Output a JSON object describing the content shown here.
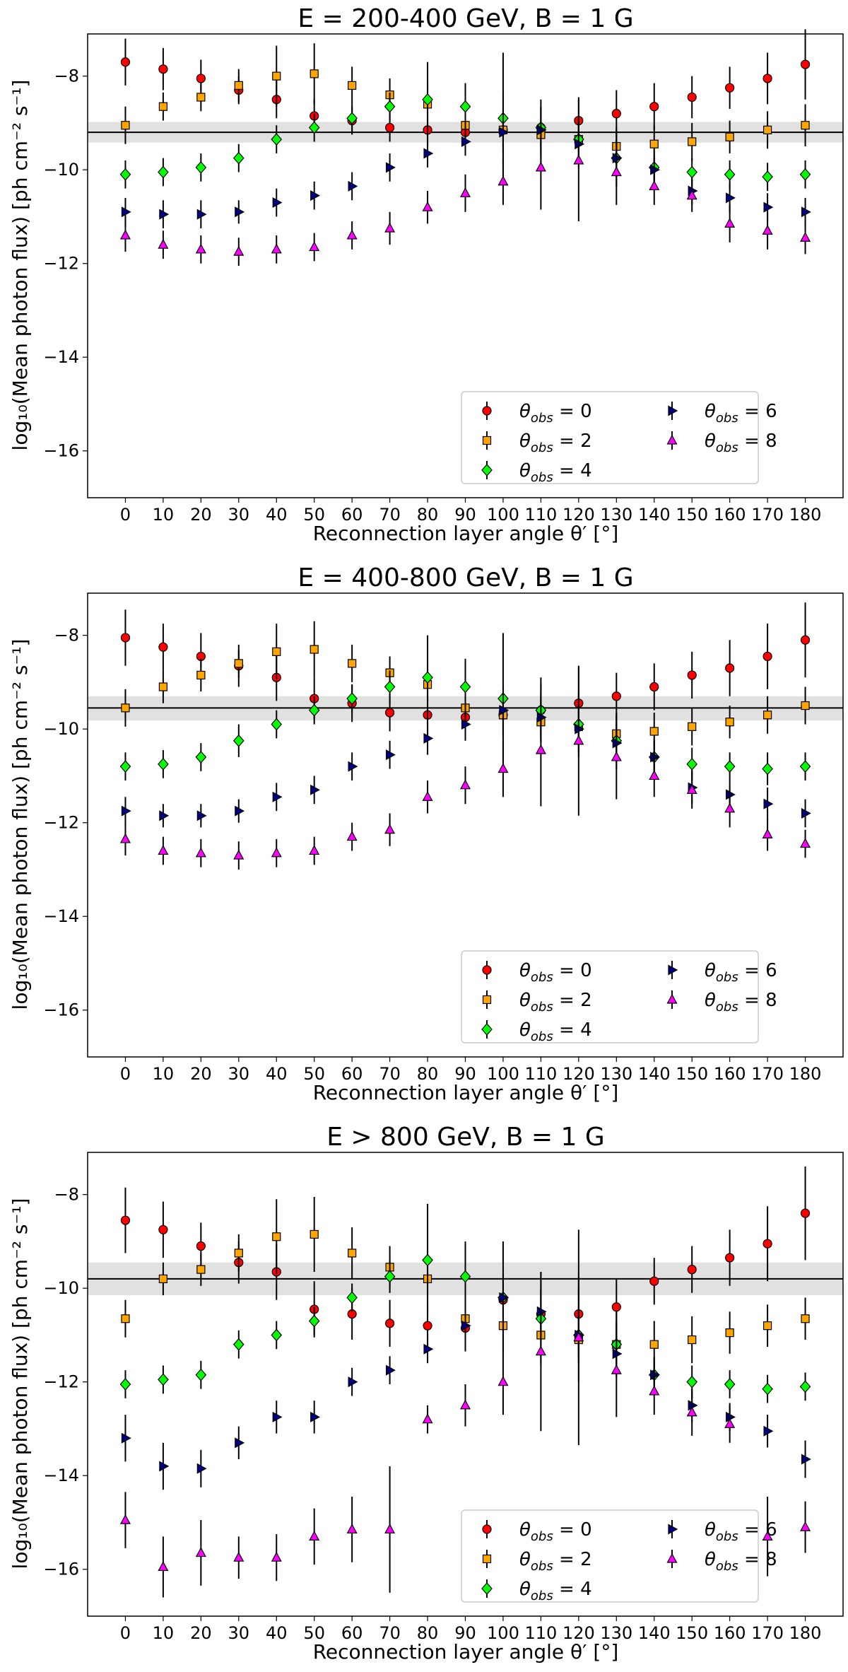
{
  "chart_data": [
    {
      "type": "scatter",
      "title": "E = 200-400 GeV, B = 1 G",
      "xlabel": "Reconnection layer angle θ′ [°]",
      "ylabel": "log₁₀(Mean photon flux) [ph cm⁻² s⁻¹]",
      "x": [
        0,
        10,
        20,
        30,
        40,
        50,
        60,
        70,
        80,
        90,
        100,
        110,
        120,
        130,
        140,
        150,
        160,
        170,
        180
      ],
      "xlim": [
        -10,
        190
      ],
      "ylim": [
        -17,
        -7.1
      ],
      "yticks": [
        -16,
        -14,
        -12,
        -10,
        -8
      ],
      "reference": {
        "y": -9.2,
        "band": [
          -9.42,
          -8.98
        ]
      },
      "legend": {
        "placement": "lower-right",
        "columns": 2
      },
      "series": [
        {
          "name": "θobs = 0",
          "label_base": "θ",
          "label_sub": "obs",
          "label_value": " = 0",
          "marker": "circle",
          "color": "#ff0000",
          "values": [
            -7.7,
            -7.85,
            -8.05,
            -8.3,
            -8.5,
            -8.85,
            -8.95,
            -9.1,
            -9.15,
            -9.2,
            -9.15,
            -9.1,
            -8.95,
            -8.8,
            -8.65,
            -8.45,
            -8.25,
            -8.05,
            -7.75
          ],
          "errors": [
            0.5,
            0.45,
            0.4,
            0.3,
            0.4,
            0.35,
            0.3,
            0.3,
            0.3,
            0.3,
            0.4,
            0.4,
            0.5,
            0.5,
            0.5,
            0.45,
            0.45,
            0.55,
            0.75
          ]
        },
        {
          "name": "θobs = 2",
          "label_base": "θ",
          "label_sub": "obs",
          "label_value": " = 2",
          "marker": "square",
          "color": "#ffa500",
          "values": [
            -9.05,
            -8.65,
            -8.45,
            -8.2,
            -8.0,
            -7.95,
            -8.2,
            -8.4,
            -8.6,
            -9.05,
            -9.15,
            -9.25,
            -9.35,
            -9.5,
            -9.45,
            -9.4,
            -9.3,
            -9.15,
            -9.05
          ],
          "errors": [
            0.4,
            0.3,
            0.3,
            0.35,
            0.65,
            0.65,
            0.4,
            0.35,
            0.9,
            0.3,
            0.8,
            0.6,
            0.4,
            0.4,
            0.4,
            0.4,
            0.35,
            0.4,
            0.45
          ]
        },
        {
          "name": "θobs = 4",
          "label_base": "θ",
          "label_sub": "obs",
          "label_value": " = 4",
          "marker": "diamond",
          "color": "#00ff00",
          "values": [
            -10.1,
            -10.05,
            -9.95,
            -9.75,
            -9.35,
            -9.1,
            -8.9,
            -8.65,
            -8.5,
            -8.65,
            -8.9,
            -9.1,
            -9.35,
            -9.75,
            -9.95,
            -10.05,
            -10.1,
            -10.15,
            -10.1
          ],
          "errors": [
            0.3,
            0.3,
            0.3,
            0.3,
            0.3,
            0.3,
            0.3,
            0.3,
            0.35,
            0.5,
            1.4,
            0.6,
            0.5,
            0.6,
            0.4,
            0.3,
            0.3,
            0.3,
            0.3
          ]
        },
        {
          "name": "θobs = 6",
          "label_base": "θ",
          "label_sub": "obs",
          "label_value": " = 6",
          "marker": "triangle-right",
          "color": "#000080",
          "values": [
            -10.9,
            -10.95,
            -10.95,
            -10.9,
            -10.7,
            -10.55,
            -10.35,
            -9.95,
            -9.65,
            -9.4,
            -9.2,
            -9.15,
            -9.45,
            -9.75,
            -10.0,
            -10.45,
            -10.6,
            -10.8,
            -10.9
          ],
          "errors": [
            0.3,
            0.3,
            0.3,
            0.25,
            0.3,
            0.3,
            0.3,
            0.3,
            0.3,
            0.3,
            0.5,
            0.5,
            0.5,
            0.4,
            0.3,
            0.3,
            0.3,
            0.3,
            0.3
          ]
        },
        {
          "name": "θobs = 8",
          "label_base": "θ",
          "label_sub": "obs",
          "label_value": " = 8",
          "marker": "triangle-up",
          "color": "#ff00ff",
          "values": [
            -11.4,
            -11.6,
            -11.7,
            -11.75,
            -11.7,
            -11.65,
            -11.4,
            -11.25,
            -10.8,
            -10.5,
            -10.25,
            -9.95,
            -9.8,
            -10.05,
            -10.35,
            -10.55,
            -11.15,
            -11.3,
            -11.45
          ],
          "errors": [
            0.35,
            0.3,
            0.3,
            0.3,
            0.3,
            0.3,
            0.3,
            0.35,
            0.35,
            0.4,
            0.5,
            0.9,
            1.3,
            0.7,
            0.4,
            0.35,
            0.4,
            0.4,
            0.35
          ]
        }
      ]
    },
    {
      "type": "scatter",
      "title": "E = 400-800 GeV, B = 1 G",
      "xlabel": "Reconnection layer angle θ′ [°]",
      "ylabel": "log₁₀(Mean photon flux) [ph cm⁻² s⁻¹]",
      "x": [
        0,
        10,
        20,
        30,
        40,
        50,
        60,
        70,
        80,
        90,
        100,
        110,
        120,
        130,
        140,
        150,
        160,
        170,
        180
      ],
      "xlim": [
        -10,
        190
      ],
      "ylim": [
        -17,
        -7.1
      ],
      "yticks": [
        -16,
        -14,
        -12,
        -10,
        -8
      ],
      "reference": {
        "y": -9.55,
        "band": [
          -9.82,
          -9.3
        ]
      },
      "legend": {
        "placement": "lower-right",
        "columns": 2
      },
      "series": [
        {
          "name": "θobs = 0",
          "label_base": "θ",
          "label_sub": "obs",
          "label_value": " = 0",
          "marker": "circle",
          "color": "#ff0000",
          "values": [
            -8.05,
            -8.25,
            -8.45,
            -8.65,
            -8.9,
            -9.35,
            -9.45,
            -9.65,
            -9.7,
            -9.75,
            -9.7,
            -9.6,
            -9.45,
            -9.3,
            -9.1,
            -8.85,
            -8.7,
            -8.45,
            -8.1
          ],
          "errors": [
            0.6,
            0.5,
            0.5,
            0.45,
            0.5,
            0.45,
            0.4,
            0.4,
            0.45,
            0.45,
            0.5,
            0.6,
            0.8,
            0.5,
            0.5,
            0.5,
            0.6,
            0.7,
            0.8
          ]
        },
        {
          "name": "θobs = 2",
          "label_base": "θ",
          "label_sub": "obs",
          "label_value": " = 2",
          "marker": "square",
          "color": "#ffa500",
          "values": [
            -9.55,
            -9.1,
            -8.85,
            -8.6,
            -8.35,
            -8.3,
            -8.6,
            -8.8,
            -9.05,
            -9.55,
            -9.7,
            -9.85,
            -9.95,
            -10.1,
            -10.05,
            -9.95,
            -9.85,
            -9.7,
            -9.5
          ],
          "errors": [
            0.4,
            0.35,
            0.35,
            0.3,
            0.6,
            0.6,
            0.4,
            0.35,
            0.4,
            0.4,
            0.45,
            0.4,
            0.4,
            0.4,
            0.4,
            0.4,
            0.35,
            0.4,
            0.4
          ]
        },
        {
          "name": "θobs = 4",
          "label_base": "θ",
          "label_sub": "obs",
          "label_value": " = 4",
          "marker": "diamond",
          "color": "#00ff00",
          "values": [
            -10.8,
            -10.75,
            -10.6,
            -10.25,
            -9.9,
            -9.6,
            -9.35,
            -9.1,
            -8.9,
            -9.1,
            -9.35,
            -9.6,
            -9.9,
            -10.25,
            -10.6,
            -10.75,
            -10.8,
            -10.85,
            -10.8
          ],
          "errors": [
            0.3,
            0.3,
            0.3,
            0.35,
            0.3,
            0.3,
            0.3,
            0.35,
            0.9,
            0.6,
            1.4,
            0.7,
            0.7,
            0.6,
            0.4,
            0.35,
            0.3,
            0.35,
            0.3
          ]
        },
        {
          "name": "θobs = 6",
          "label_base": "θ",
          "label_sub": "obs",
          "label_value": " = 6",
          "marker": "triangle-right",
          "color": "#000080",
          "values": [
            -11.75,
            -11.85,
            -11.85,
            -11.75,
            -11.45,
            -11.3,
            -10.8,
            -10.55,
            -10.2,
            -9.9,
            -9.6,
            -9.75,
            -10.0,
            -10.3,
            -10.6,
            -11.25,
            -11.4,
            -11.6,
            -11.8
          ],
          "errors": [
            0.3,
            0.25,
            0.25,
            0.25,
            0.3,
            0.3,
            0.3,
            0.3,
            0.35,
            0.35,
            0.5,
            0.5,
            0.5,
            0.4,
            0.35,
            0.35,
            0.3,
            0.35,
            0.3
          ]
        },
        {
          "name": "θobs = 8",
          "label_base": "θ",
          "label_sub": "obs",
          "label_value": " = 8",
          "marker": "triangle-up",
          "color": "#ff00ff",
          "values": [
            -12.35,
            -12.6,
            -12.65,
            -12.7,
            -12.65,
            -12.6,
            -12.3,
            -12.15,
            -11.45,
            -11.2,
            -10.85,
            -10.45,
            -10.25,
            -10.6,
            -11.0,
            -11.3,
            -11.7,
            -12.25,
            -12.45
          ],
          "errors": [
            0.35,
            0.3,
            0.3,
            0.3,
            0.3,
            0.3,
            0.3,
            0.35,
            0.35,
            0.4,
            0.6,
            1.2,
            1.6,
            0.9,
            0.45,
            0.4,
            0.4,
            0.35,
            0.3
          ]
        }
      ]
    },
    {
      "type": "scatter",
      "title": "E > 800 GeV, B = 1 G",
      "xlabel": "Reconnection layer angle θ′ [°]",
      "ylabel": "log₁₀(Mean photon flux) [ph cm⁻² s⁻¹]",
      "x": [
        0,
        10,
        20,
        30,
        40,
        50,
        60,
        70,
        80,
        90,
        100,
        110,
        120,
        130,
        140,
        150,
        160,
        170,
        180
      ],
      "xlim": [
        -10,
        190
      ],
      "ylim": [
        -17,
        -7.1
      ],
      "yticks": [
        -16,
        -14,
        -12,
        -10,
        -8
      ],
      "reference": {
        "y": -9.8,
        "band": [
          -10.15,
          -9.45
        ]
      },
      "legend": {
        "placement": "lower-right",
        "columns": 2
      },
      "series": [
        {
          "name": "θobs = 0",
          "label_base": "θ",
          "label_sub": "obs",
          "label_value": " = 0",
          "marker": "circle",
          "color": "#ff0000",
          "values": [
            -8.55,
            -8.75,
            -9.1,
            -9.45,
            -9.65,
            -10.45,
            -10.55,
            -10.75,
            -10.8,
            -10.85,
            -10.25,
            -10.55,
            -10.55,
            -10.4,
            -9.85,
            -9.6,
            -9.35,
            -9.05,
            -8.4
          ],
          "errors": [
            0.7,
            0.6,
            0.5,
            0.45,
            0.6,
            0.6,
            0.55,
            0.5,
            0.5,
            0.5,
            0.5,
            0.5,
            0.8,
            0.6,
            0.5,
            0.5,
            0.6,
            0.8,
            1.0
          ]
        },
        {
          "name": "θobs = 2",
          "label_base": "θ",
          "label_sub": "obs",
          "label_value": " = 2",
          "marker": "square",
          "color": "#ffa500",
          "values": [
            -10.65,
            -9.8,
            -9.6,
            -9.25,
            -8.9,
            -8.85,
            -9.25,
            -9.55,
            -9.8,
            -10.65,
            -10.8,
            -11.0,
            -11.1,
            -11.2,
            -11.2,
            -11.1,
            -10.95,
            -10.8,
            -10.65
          ],
          "errors": [
            0.4,
            0.35,
            0.35,
            0.4,
            0.8,
            0.8,
            0.55,
            0.45,
            0.4,
            0.45,
            0.5,
            0.5,
            0.5,
            0.5,
            0.5,
            0.5,
            0.45,
            0.45,
            0.45
          ]
        },
        {
          "name": "θobs = 4",
          "label_base": "θ",
          "label_sub": "obs",
          "label_value": " = 4",
          "marker": "diamond",
          "color": "#00ff00",
          "values": [
            -12.05,
            -11.95,
            -11.85,
            -11.2,
            -11.0,
            -10.7,
            -10.2,
            -9.75,
            -9.4,
            -9.75,
            -10.2,
            -10.65,
            -11.0,
            -11.2,
            -11.85,
            -12.0,
            -12.05,
            -12.15,
            -12.1
          ],
          "errors": [
            0.3,
            0.3,
            0.3,
            0.3,
            0.3,
            0.3,
            0.3,
            0.35,
            1.2,
            0.75,
            1.2,
            1.0,
            1.0,
            0.7,
            0.4,
            0.35,
            0.3,
            0.3,
            0.3
          ]
        },
        {
          "name": "θobs = 6",
          "label_base": "θ",
          "label_sub": "obs",
          "label_value": " = 6",
          "marker": "triangle-right",
          "color": "#000080",
          "values": [
            -13.2,
            -13.8,
            -13.85,
            -13.3,
            -12.75,
            -12.75,
            -12.0,
            -11.75,
            -11.3,
            -10.8,
            -10.2,
            -10.5,
            -11.0,
            -11.4,
            -11.85,
            -12.5,
            -12.75,
            -13.05,
            -13.65
          ],
          "errors": [
            0.5,
            0.5,
            0.4,
            0.35,
            0.35,
            0.35,
            0.3,
            0.3,
            0.3,
            0.35,
            0.5,
            0.5,
            0.5,
            0.4,
            0.35,
            0.35,
            0.3,
            0.35,
            0.4
          ]
        },
        {
          "name": "θobs = 8",
          "label_base": "θ",
          "label_sub": "obs",
          "label_value": " = 8",
          "marker": "triangle-up",
          "color": "#ff00ff",
          "values": [
            -14.95,
            -15.95,
            -15.65,
            -15.75,
            -15.75,
            -15.3,
            -15.15,
            -15.15,
            -12.8,
            -12.5,
            -12.0,
            -11.35,
            -11.05,
            -11.75,
            -12.2,
            -12.65,
            -12.9,
            -15.3,
            -15.1
          ],
          "errors": [
            0.6,
            0.65,
            0.7,
            0.45,
            0.5,
            0.6,
            0.7,
            1.35,
            0.3,
            0.45,
            0.7,
            1.7,
            2.3,
            1.0,
            0.5,
            0.5,
            0.4,
            0.85,
            0.55
          ]
        }
      ]
    }
  ]
}
